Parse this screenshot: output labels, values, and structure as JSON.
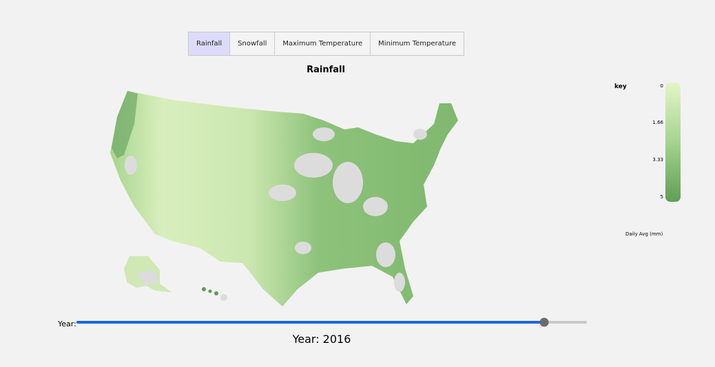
{
  "tabs": [
    "Rainfall",
    "Snowfall",
    "Maximum Temperature",
    "Minimum Temperature"
  ],
  "active_tab": 0,
  "map": {
    "title": "Rainfall"
  },
  "legend": {
    "title": "key",
    "ticks": [
      0,
      1.66,
      3.33,
      5
    ],
    "caption": "Daily Avg (mm)"
  },
  "slider": {
    "label": "Year:",
    "value_label": "Year: 2016"
  }
}
